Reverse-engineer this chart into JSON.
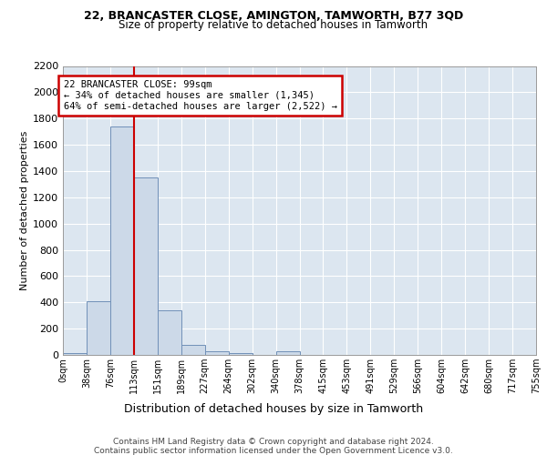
{
  "title1": "22, BRANCASTER CLOSE, AMINGTON, TAMWORTH, B77 3QD",
  "title2": "Size of property relative to detached houses in Tamworth",
  "xlabel": "Distribution of detached houses by size in Tamworth",
  "ylabel": "Number of detached properties",
  "bin_labels": [
    "0sqm",
    "38sqm",
    "76sqm",
    "113sqm",
    "151sqm",
    "189sqm",
    "227sqm",
    "264sqm",
    "302sqm",
    "340sqm",
    "378sqm",
    "415sqm",
    "453sqm",
    "491sqm",
    "529sqm",
    "566sqm",
    "604sqm",
    "642sqm",
    "680sqm",
    "717sqm",
    "755sqm"
  ],
  "bar_heights": [
    15,
    410,
    1740,
    1350,
    340,
    75,
    25,
    15,
    0,
    25,
    0,
    0,
    0,
    0,
    0,
    0,
    0,
    0,
    0,
    0
  ],
  "bar_color": "#ccd9e8",
  "bar_edgecolor": "#7090b8",
  "vline_x": 3.0,
  "annotation_text": "22 BRANCASTER CLOSE: 99sqm\n← 34% of detached houses are smaller (1,345)\n64% of semi-detached houses are larger (2,522) →",
  "annotation_box_color": "#ffffff",
  "annotation_border_color": "#cc0000",
  "vline_color": "#cc0000",
  "ylim": [
    0,
    2200
  ],
  "yticks": [
    0,
    200,
    400,
    600,
    800,
    1000,
    1200,
    1400,
    1600,
    1800,
    2000,
    2200
  ],
  "footer_line1": "Contains HM Land Registry data © Crown copyright and database right 2024.",
  "footer_line2": "Contains public sector information licensed under the Open Government Licence v3.0.",
  "background_color": "#ffffff",
  "plot_background_color": "#dce6f0"
}
